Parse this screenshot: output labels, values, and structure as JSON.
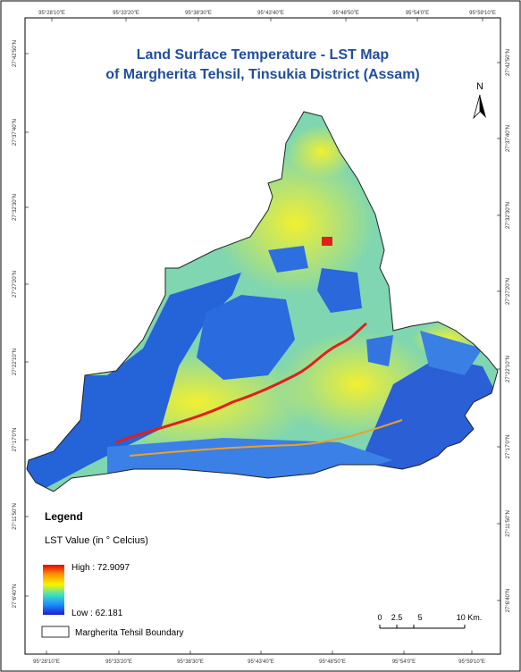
{
  "title": {
    "line1": "Land Surface Temperature - LST Map",
    "line2": "of Margherita Tehsil, Tinsukia District (Assam)"
  },
  "north_arrow": "N",
  "grid_labels": {
    "top": [
      "95°28'10\"E",
      "95°33'20\"E",
      "95°38'30\"E",
      "95°43'40\"E",
      "95°48'50\"E",
      "95°54'0\"E",
      "95°59'10\"E"
    ],
    "bottom": [
      "95°28'10\"E",
      "95°33'20\"E",
      "95°38'30\"E",
      "95°43'40\"E",
      "95°48'50\"E",
      "95°54'0\"E",
      "95°59'10\"E"
    ],
    "left": [
      "27°42'50\"N",
      "27°37'40\"N",
      "27°32'30\"N",
      "27°27'20\"N",
      "27°22'10\"N",
      "27°17'0\"N",
      "27°11'50\"N",
      "27°6'40\"N"
    ],
    "right": [
      "27°42'50\"N",
      "27°37'40\"N",
      "27°32'30\"N",
      "27°27'20\"N",
      "27°22'10\"N",
      "27°17'0\"N",
      "27°11'50\"N",
      "27°6'40\"N"
    ]
  },
  "legend": {
    "title": "Legend",
    "subtitle": "LST Value (in ° Celcius)",
    "high": "High : 72.9097",
    "low": "Low : 62.181",
    "boundary": "Margherita Tehsil Boundary"
  },
  "scale_bar": {
    "labels": [
      "0",
      "2.5",
      "5",
      "10 Km."
    ]
  }
}
